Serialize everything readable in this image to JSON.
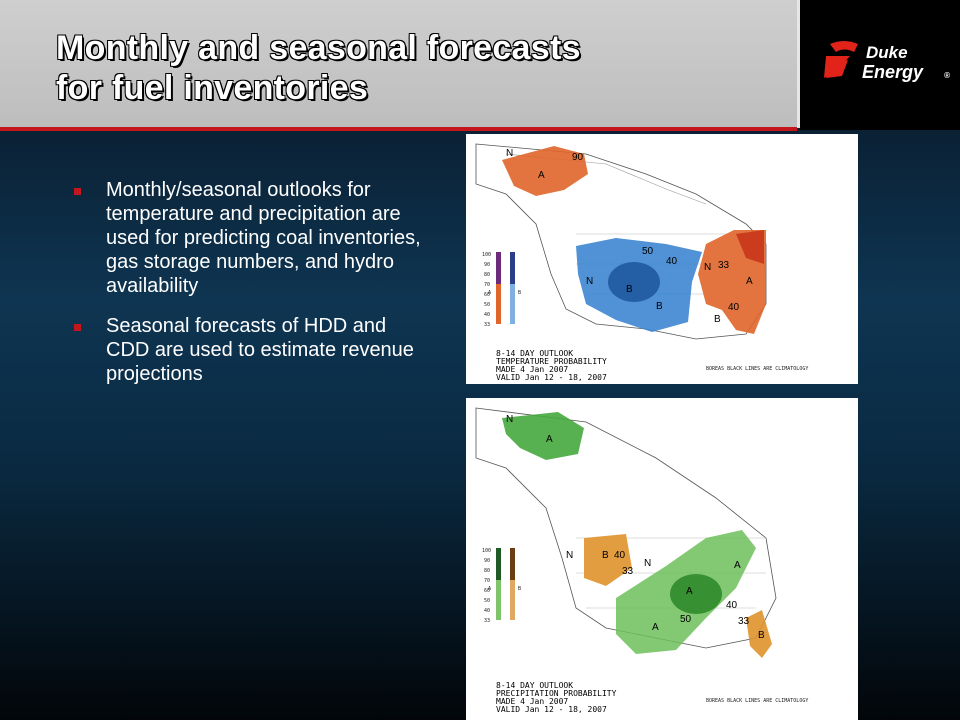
{
  "slide": {
    "title_line1": "Monthly and seasonal forecasts",
    "title_line2": "for fuel inventories",
    "bullets": [
      "Monthly/seasonal outlooks for temperature and precipitation are used for predicting coal inventories, gas storage numbers, and hydro availability",
      "Seasonal forecasts of HDD and CDD are used to estimate revenue projections"
    ]
  },
  "logo": {
    "line1": "Duke",
    "line2": "Energy",
    "mark": "®",
    "icon": "duke-energy-flame-icon"
  },
  "maps": {
    "temperature": {
      "caption_line1": "8-14 DAY OUTLOOK",
      "caption_line2": "TEMPERATURE PROBABILITY",
      "caption_line3": "MADE   4 Jan 2007",
      "caption_line4": "VALID   Jan 12 - 18, 2007",
      "legend_values": [
        "100",
        "90",
        "80",
        "70",
        "60",
        "50",
        "40",
        "33"
      ],
      "legend_letters": [
        "A",
        "B"
      ],
      "note": "BOREAS BLACK LINES ARE CLIMATOLOGY",
      "labels": [
        "N",
        "A",
        "B",
        "N",
        "A",
        "N",
        "B",
        "B",
        "90",
        "33",
        "40",
        "50",
        "40"
      ],
      "colors": {
        "above": "#e0652a",
        "below": "#3d86d0"
      }
    },
    "precipitation": {
      "caption_line1": "8-14 DAY OUTLOOK",
      "caption_line2": "PRECIPITATION PROBABILITY",
      "caption_line3": "MADE   4 Jan 2007",
      "caption_line4": "VALID   Jan 12 - 18, 2007",
      "legend_values": [
        "100",
        "90",
        "80",
        "70",
        "60",
        "50",
        "40",
        "33"
      ],
      "legend_letters": [
        "A",
        "B"
      ],
      "note": "BOREAS BLACK LINES ARE CLIMATOLOGY",
      "labels": [
        "N",
        "A",
        "N",
        "B",
        "N",
        "A",
        "A",
        "A",
        "B",
        "33",
        "40",
        "50",
        "40",
        "33"
      ],
      "colors": {
        "above": "#46a83e",
        "below": "#e0922c"
      }
    }
  }
}
